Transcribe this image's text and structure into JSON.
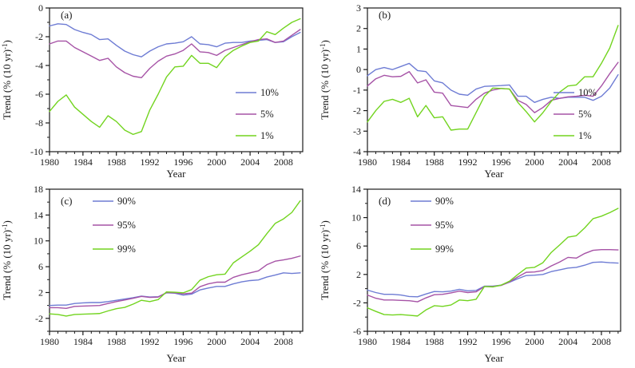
{
  "figure": {
    "background": "#ffffff",
    "axis_color": "#1a1a1a",
    "text_color": "#1a1a1a"
  },
  "colors": {
    "blue": "#6e7cd4",
    "purple": "#a653a6",
    "green": "#72d41f"
  },
  "years": [
    1980,
    1981,
    1982,
    1983,
    1984,
    1985,
    1986,
    1987,
    1988,
    1989,
    1990,
    1991,
    1992,
    1993,
    1994,
    1995,
    1996,
    1997,
    1998,
    1999,
    2000,
    2001,
    2002,
    2003,
    2004,
    2005,
    2006,
    2007,
    2008,
    2009,
    2010
  ],
  "chart_data": [
    {
      "type": "line",
      "id": "a",
      "panel": "(a)",
      "xlabel": "Year",
      "ylabel": "Trend (% (10 yr)⁻¹)",
      "xlim": [
        1980,
        2010.3
      ],
      "ylim": [
        -10,
        0
      ],
      "yticks": [
        0,
        -2,
        -4,
        -6,
        -8,
        -10
      ],
      "y_minor_step": 1,
      "xticks": [
        1980,
        1984,
        1988,
        1992,
        1996,
        2000,
        2004,
        2008
      ],
      "x_minor_step": 1,
      "grid": false,
      "legend_pos": "bottom-right",
      "series": [
        {
          "name": "10%",
          "color": "blue",
          "values": [
            -1.25,
            -1.1,
            -1.15,
            -1.5,
            -1.7,
            -1.85,
            -2.2,
            -2.15,
            -2.6,
            -3.0,
            -3.25,
            -3.4,
            -3.0,
            -2.7,
            -2.5,
            -2.45,
            -2.35,
            -2.0,
            -2.5,
            -2.55,
            -2.7,
            -2.45,
            -2.4,
            -2.4,
            -2.3,
            -2.25,
            -2.2,
            -2.4,
            -2.35,
            -2.0,
            -1.7
          ]
        },
        {
          "name": "5%",
          "color": "purple",
          "values": [
            -2.5,
            -2.3,
            -2.3,
            -2.75,
            -3.05,
            -3.35,
            -3.65,
            -3.5,
            -4.1,
            -4.5,
            -4.75,
            -4.85,
            -4.2,
            -3.7,
            -3.35,
            -3.2,
            -2.95,
            -2.5,
            -3.05,
            -3.1,
            -3.3,
            -2.95,
            -2.75,
            -2.55,
            -2.35,
            -2.2,
            -2.15,
            -2.4,
            -2.3,
            -1.9,
            -1.5
          ]
        },
        {
          "name": "1%",
          "color": "green",
          "values": [
            -7.2,
            -6.5,
            -6.05,
            -6.9,
            -7.4,
            -7.9,
            -8.3,
            -7.5,
            -7.9,
            -8.5,
            -8.8,
            -8.6,
            -7.1,
            -6.0,
            -4.8,
            -4.1,
            -4.05,
            -3.3,
            -3.85,
            -3.85,
            -4.15,
            -3.4,
            -2.95,
            -2.65,
            -2.4,
            -2.3,
            -1.65,
            -1.85,
            -1.4,
            -1.0,
            -0.75
          ]
        }
      ]
    },
    {
      "type": "line",
      "id": "b",
      "panel": "(b)",
      "xlabel": "Year",
      "ylabel": "Trend (% (10 yr)⁻¹)",
      "xlim": [
        1980,
        2010.3
      ],
      "ylim": [
        -4,
        3
      ],
      "yticks": [
        3,
        2,
        1,
        0,
        -1,
        -2,
        -3,
        -4
      ],
      "y_minor_step": null,
      "xticks": [
        1980,
        1984,
        1988,
        1992,
        1996,
        2000,
        2004,
        2008
      ],
      "x_minor_step": 1,
      "grid": false,
      "legend_pos": "bottom-right",
      "series": [
        {
          "name": "10%",
          "color": "blue",
          "values": [
            -0.3,
            0.0,
            0.1,
            0.0,
            0.15,
            0.3,
            -0.05,
            -0.1,
            -0.55,
            -0.65,
            -1.0,
            -1.2,
            -1.25,
            -0.95,
            -0.82,
            -0.8,
            -0.78,
            -0.75,
            -1.3,
            -1.3,
            -1.6,
            -1.45,
            -1.35,
            -1.4,
            -1.35,
            -1.35,
            -1.35,
            -1.5,
            -1.3,
            -0.9,
            -0.25
          ]
        },
        {
          "name": "5%",
          "color": "purple",
          "values": [
            -0.8,
            -0.45,
            -0.28,
            -0.35,
            -0.33,
            -0.1,
            -0.65,
            -0.5,
            -1.1,
            -1.15,
            -1.75,
            -1.8,
            -1.85,
            -1.45,
            -1.15,
            -1.0,
            -0.92,
            -0.95,
            -1.5,
            -1.7,
            -2.1,
            -1.85,
            -1.5,
            -1.4,
            -1.33,
            -1.3,
            -1.25,
            -1.3,
            -0.8,
            -0.2,
            0.35
          ]
        },
        {
          "name": "1%",
          "color": "green",
          "values": [
            -2.55,
            -2.0,
            -1.55,
            -1.45,
            -1.6,
            -1.4,
            -2.3,
            -1.75,
            -2.35,
            -2.3,
            -2.95,
            -2.9,
            -2.9,
            -2.1,
            -1.3,
            -0.9,
            -0.92,
            -0.95,
            -1.6,
            -2.05,
            -2.55,
            -2.1,
            -1.55,
            -1.1,
            -0.8,
            -0.75,
            -0.35,
            -0.35,
            0.3,
            1.05,
            2.15
          ]
        }
      ]
    },
    {
      "type": "line",
      "id": "c",
      "panel": "(c)",
      "xlabel": "Year",
      "ylabel": "Trend (% (10 yr)⁻¹)",
      "xlim": [
        1980,
        2010.3
      ],
      "ylim": [
        -4,
        18
      ],
      "yticks": [
        18,
        14,
        10,
        6,
        2,
        -2
      ],
      "y_minor_step": 2,
      "xticks": [
        1980,
        1984,
        1988,
        1992,
        1996,
        2000,
        2004,
        2008
      ],
      "x_minor_step": 1,
      "grid": false,
      "legend_pos": "top-left",
      "series": [
        {
          "name": "90%",
          "color": "blue",
          "values": [
            0.0,
            0.05,
            0.05,
            0.3,
            0.4,
            0.45,
            0.45,
            0.6,
            0.8,
            1.0,
            1.2,
            1.45,
            1.3,
            1.35,
            1.95,
            1.9,
            1.6,
            1.75,
            2.4,
            2.7,
            2.95,
            2.95,
            3.35,
            3.65,
            3.85,
            3.95,
            4.4,
            4.7,
            5.05,
            4.95,
            5.05
          ]
        },
        {
          "name": "95%",
          "color": "purple",
          "values": [
            -0.35,
            -0.35,
            -0.45,
            -0.15,
            -0.1,
            -0.05,
            0.0,
            0.3,
            0.6,
            0.85,
            1.1,
            1.4,
            1.25,
            1.3,
            2.0,
            1.95,
            1.8,
            1.9,
            2.9,
            3.35,
            3.6,
            3.6,
            4.35,
            4.75,
            5.05,
            5.35,
            6.3,
            6.85,
            7.05,
            7.3,
            7.65
          ]
        },
        {
          "name": "99%",
          "color": "green",
          "values": [
            -1.3,
            -1.4,
            -1.65,
            -1.4,
            -1.35,
            -1.3,
            -1.25,
            -0.85,
            -0.5,
            -0.3,
            0.2,
            0.8,
            0.6,
            0.9,
            2.1,
            2.05,
            1.95,
            2.45,
            3.9,
            4.45,
            4.75,
            4.85,
            6.6,
            7.5,
            8.4,
            9.4,
            11.1,
            12.7,
            13.4,
            14.4,
            16.2
          ]
        }
      ]
    },
    {
      "type": "line",
      "id": "d",
      "panel": "(d)",
      "xlabel": "Year",
      "ylabel": "Trend (% (10 yr)⁻¹)",
      "xlim": [
        1980,
        2010.3
      ],
      "ylim": [
        -6,
        14
      ],
      "yticks": [
        14,
        10,
        6,
        2,
        -2,
        -6
      ],
      "y_minor_step": 2,
      "xticks": [
        1980,
        1984,
        1988,
        1992,
        1996,
        2000,
        2004,
        2008
      ],
      "x_minor_step": 1,
      "grid": false,
      "legend_pos": "top-left",
      "series": [
        {
          "name": "90%",
          "color": "blue",
          "values": [
            -0.2,
            -0.55,
            -0.8,
            -0.8,
            -0.9,
            -1.1,
            -1.15,
            -0.75,
            -0.4,
            -0.45,
            -0.35,
            -0.1,
            -0.3,
            -0.25,
            0.35,
            0.35,
            0.5,
            0.9,
            1.4,
            1.85,
            1.9,
            2.0,
            2.4,
            2.65,
            2.9,
            3.0,
            3.3,
            3.7,
            3.75,
            3.65,
            3.6
          ]
        },
        {
          "name": "95%",
          "color": "purple",
          "values": [
            -0.9,
            -1.35,
            -1.6,
            -1.6,
            -1.65,
            -1.7,
            -1.85,
            -1.3,
            -0.85,
            -0.8,
            -0.6,
            -0.35,
            -0.55,
            -0.45,
            0.3,
            0.3,
            0.45,
            0.95,
            1.65,
            2.3,
            2.35,
            2.55,
            3.2,
            3.75,
            4.4,
            4.3,
            4.95,
            5.4,
            5.5,
            5.5,
            5.45
          ]
        },
        {
          "name": "99%",
          "color": "green",
          "values": [
            -2.7,
            -3.2,
            -3.65,
            -3.7,
            -3.65,
            -3.75,
            -3.85,
            -3.0,
            -2.4,
            -2.5,
            -2.3,
            -1.6,
            -1.7,
            -1.5,
            0.3,
            0.25,
            0.5,
            1.05,
            2.0,
            2.9,
            3.0,
            3.65,
            5.1,
            6.15,
            7.25,
            7.45,
            8.55,
            9.85,
            10.2,
            10.7,
            11.3
          ]
        }
      ]
    }
  ]
}
